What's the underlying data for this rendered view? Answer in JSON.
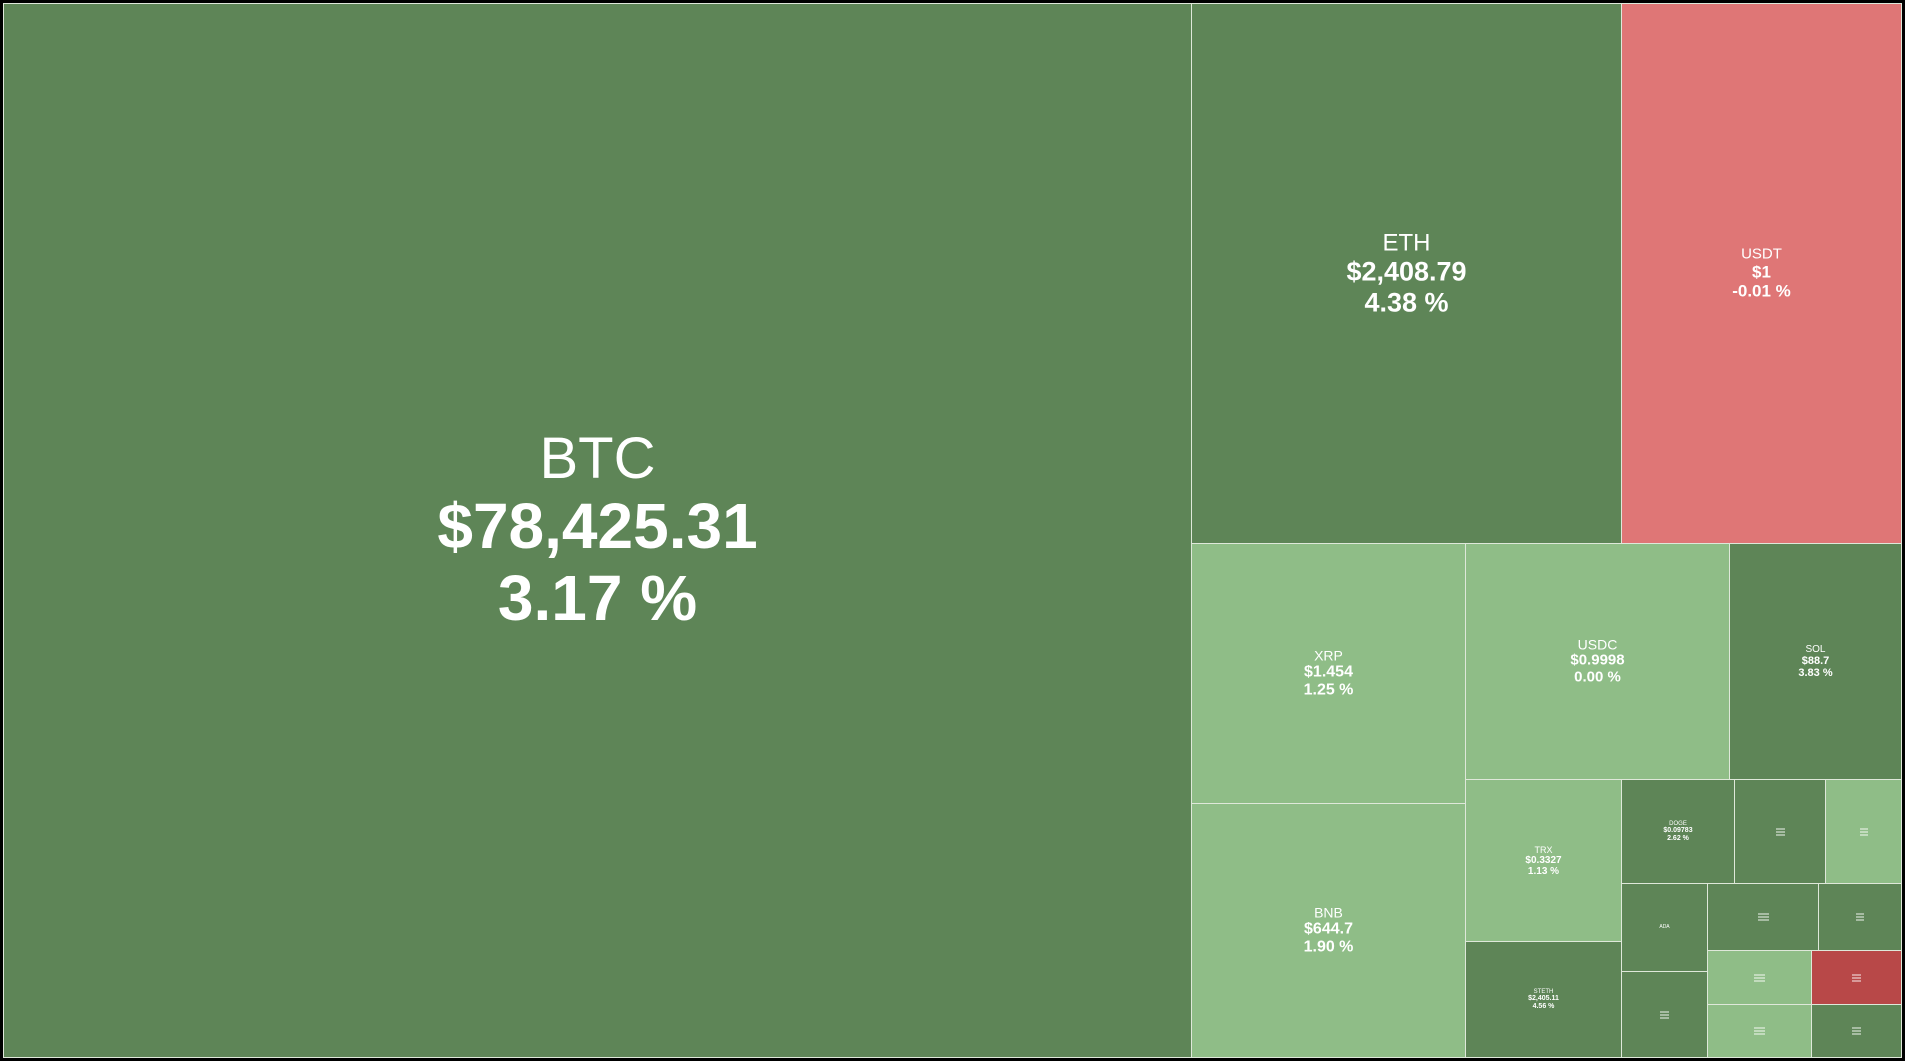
{
  "colors": {
    "background": "#000000",
    "border": "#dfe8da",
    "strong_up": "#5e8557",
    "light_up": "#8fbd87",
    "down": "#df7676",
    "strong_down": "#b84848",
    "text": "#ffffff"
  },
  "chart_data": {
    "type": "treemap",
    "metric": "market cap",
    "items": [
      {
        "symbol": "BTC",
        "price": "$78,425.31",
        "change": "3.17 %",
        "change_pct": 3.17,
        "tone": "strong_up",
        "weight": 850.35
      },
      {
        "symbol": "ETH",
        "price": "$2,408.79",
        "change": "4.38 %",
        "change_pct": 4.38,
        "tone": "strong_up",
        "weight": 153.76
      },
      {
        "symbol": "USDT",
        "price": "$1",
        "change": "-0.01 %",
        "change_pct": -0.01,
        "tone": "down",
        "weight": 99.82
      },
      {
        "symbol": "XRP",
        "price": "$1.454",
        "change": "1.25 %",
        "change_pct": 1.25,
        "tone": "light_up",
        "weight": 48.51
      },
      {
        "symbol": "BNB",
        "price": "$644.7",
        "change": "1.90 %",
        "change_pct": 1.9,
        "tone": "light_up",
        "weight": 45.51
      },
      {
        "symbol": "USDC",
        "price": "$0.9998",
        "change": "0.00 %",
        "change_pct": 0.0,
        "tone": "light_up",
        "weight": 42.49
      },
      {
        "symbol": "SOL",
        "price": "$88.7",
        "change": "3.83 %",
        "change_pct": 3.83,
        "tone": "strong_up",
        "weight": 27.8
      },
      {
        "symbol": "TRX",
        "price": "$0.3327",
        "change": "1.13 %",
        "change_pct": 1.13,
        "tone": "light_up",
        "weight": 17.3
      },
      {
        "symbol": "STETH",
        "price": "$2,405.11",
        "change": "4.56 %",
        "change_pct": 4.56,
        "tone": "strong_up",
        "weight": 12.7
      },
      {
        "symbol": "DOGE",
        "price": "$0.09783",
        "change": "2.62 %",
        "change_pct": 2.62,
        "tone": "strong_up",
        "weight": 10.0
      },
      {
        "symbol": "",
        "price": "",
        "change": "",
        "tone": "strong_up",
        "weight": 7.8
      },
      {
        "symbol": "",
        "price": "",
        "change": "",
        "tone": "light_up",
        "weight": 6.4
      },
      {
        "symbol": "ADA",
        "price": "",
        "change": "",
        "tone": "strong_up",
        "weight": 7.2
      },
      {
        "symbol": "",
        "price": "",
        "change": "",
        "tone": "strong_up",
        "weight": 8.4
      },
      {
        "symbol": "",
        "price": "",
        "change": "",
        "tone": "strong_up",
        "weight": 5.3
      },
      {
        "symbol": "",
        "price": "",
        "change": "",
        "tone": "strong_up",
        "weight": 7.6
      },
      {
        "symbol": "",
        "price": "",
        "change": "",
        "tone": "light_up",
        "weight": 4.6
      },
      {
        "symbol": "",
        "price": "",
        "change": "",
        "tone": "strong_down",
        "weight": 4.3
      },
      {
        "symbol": "",
        "price": "",
        "change": "",
        "tone": "light_up",
        "weight": 4.6
      },
      {
        "symbol": "",
        "price": "",
        "change": "",
        "tone": "strong_up",
        "weight": 4.5
      }
    ]
  }
}
